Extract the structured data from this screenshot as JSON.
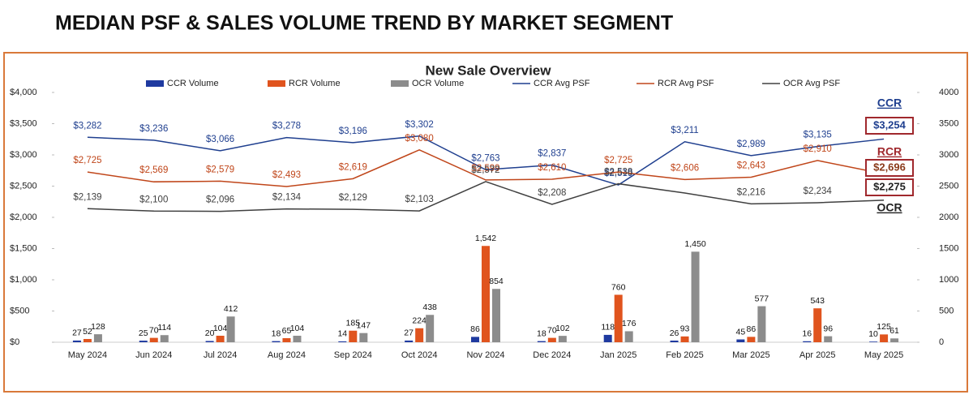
{
  "header": {
    "title": "MEDIAN PSF & SALES VOLUME TREND BY MARKET SEGMENT"
  },
  "chart_data": {
    "type": "combo",
    "title": "New Sale Overview",
    "categories": [
      "May 2024",
      "Jun 2024",
      "Jul 2024",
      "Aug 2024",
      "Sep 2024",
      "Oct 2024",
      "Nov 2024",
      "Dec 2024",
      "Jan 2025",
      "Feb 2025",
      "Mar 2025",
      "Apr 2025",
      "May 2025"
    ],
    "series": [
      {
        "name": "CCR Volume",
        "type": "bar",
        "axis": "y2",
        "color": "#1f3aa0",
        "values": [
          27,
          25,
          20,
          18,
          14,
          27,
          86,
          18,
          118,
          26,
          45,
          16,
          10
        ]
      },
      {
        "name": "RCR Volume",
        "type": "bar",
        "axis": "y2",
        "color": "#e0541e",
        "values": [
          52,
          70,
          104,
          65,
          185,
          224,
          1542,
          70,
          760,
          93,
          86,
          543,
          125
        ],
        "value_labels": [
          "52",
          "70",
          "104",
          "65",
          "185",
          "224",
          "1,542",
          "70",
          "760",
          "93",
          "86",
          "543",
          "125"
        ]
      },
      {
        "name": "OCR Volume",
        "type": "bar",
        "axis": "y2",
        "color": "#8c8c8c",
        "values": [
          128,
          114,
          412,
          104,
          147,
          438,
          854,
          102,
          176,
          1450,
          577,
          96,
          61
        ],
        "value_labels": [
          "128",
          "114",
          "412",
          "104",
          "147",
          "438",
          "854",
          "102",
          "176",
          "1,450",
          "577",
          "96",
          "61"
        ]
      },
      {
        "name": "CCR Avg PSF",
        "type": "line",
        "color": "#1f3f8f",
        "values": [
          3282,
          3236,
          3066,
          3278,
          3196,
          3302,
          2763,
          2837,
          2519,
          3211,
          2989,
          3135,
          3254
        ],
        "value_labels": [
          "$3,282",
          "$3,236",
          "$3,066",
          "$3,278",
          "$3,196",
          "$3,302",
          "$2,763",
          "$2,837",
          "$2,519",
          "$3,211",
          "$2,989",
          "$3,135",
          "$3,254"
        ]
      },
      {
        "name": "RCR Avg PSF",
        "type": "line",
        "color": "#c0461a",
        "values": [
          2725,
          2569,
          2579,
          2493,
          2619,
          3080,
          2599,
          2610,
          2725,
          2606,
          2643,
          2910,
          2696
        ],
        "value_labels": [
          "$2,725",
          "$2,569",
          "$2,579",
          "$2,493",
          "$2,619",
          "$3,080",
          "$2,599",
          "$2,610",
          "$2,725",
          "$2,606",
          "$2,643",
          "$2,910",
          "$2,696"
        ]
      },
      {
        "name": "OCR Avg PSF",
        "type": "line",
        "color": "#404040",
        "values": [
          2139,
          2100,
          2096,
          2134,
          2129,
          2103,
          2572,
          2208,
          2538,
          2390,
          2216,
          2234,
          2275
        ],
        "value_labels": [
          "$2,139",
          "$2,100",
          "$2,096",
          "$2,134",
          "$2,129",
          "$2,103",
          "$2,572",
          "$2,208",
          "$2,538",
          null,
          "$2,216",
          "$2,234",
          "$2,275"
        ]
      }
    ],
    "ylim": [
      0,
      4000
    ],
    "yticks": [
      {
        "value": 0,
        "label": "$0"
      },
      {
        "value": 500,
        "label": "$500"
      },
      {
        "value": 1000,
        "label": "$1,000"
      },
      {
        "value": 1500,
        "label": "$1,500"
      },
      {
        "value": 2000,
        "label": "$2,000"
      },
      {
        "value": 2500,
        "label": "$2,500"
      },
      {
        "value": 3000,
        "label": "$3,000"
      },
      {
        "value": 3500,
        "label": "$3,500"
      },
      {
        "value": 4000,
        "label": "$4,000"
      }
    ],
    "y2lim": [
      0,
      4000
    ],
    "y2ticks": [
      0,
      500,
      1000,
      1500,
      2000,
      2500,
      3000,
      3500,
      4000
    ],
    "annotations": [
      "CCR",
      "RCR",
      "OCR"
    ],
    "grid": false
  }
}
